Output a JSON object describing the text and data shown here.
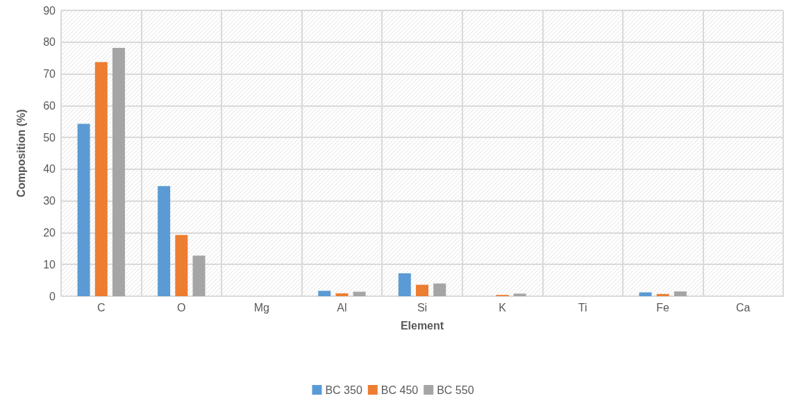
{
  "chart_data": {
    "type": "bar",
    "xlabel": "Element",
    "ylabel": "Composition (%)",
    "categories": [
      "C",
      "O",
      "Mg",
      "Al",
      "Si",
      "K",
      "Ti",
      "Fe",
      "Ca"
    ],
    "series": [
      {
        "name": "BC 350",
        "color": "#5b9bd5",
        "values": [
          54.3,
          34.7,
          0,
          1.7,
          7.2,
          0,
          0,
          1.2,
          0
        ]
      },
      {
        "name": "BC 450",
        "color": "#ed7d31",
        "values": [
          73.7,
          19.3,
          0,
          0.9,
          3.6,
          0.4,
          0,
          0.7,
          0
        ]
      },
      {
        "name": "BC 550",
        "color": "#a5a5a5",
        "values": [
          78.2,
          12.8,
          0,
          1.4,
          4.0,
          0.8,
          0,
          1.5,
          0
        ]
      }
    ],
    "ylim": [
      0,
      90
    ],
    "yticks": [
      0,
      10,
      20,
      30,
      40,
      50,
      60,
      70,
      80,
      90
    ],
    "grid": true,
    "legend": "bottom"
  }
}
